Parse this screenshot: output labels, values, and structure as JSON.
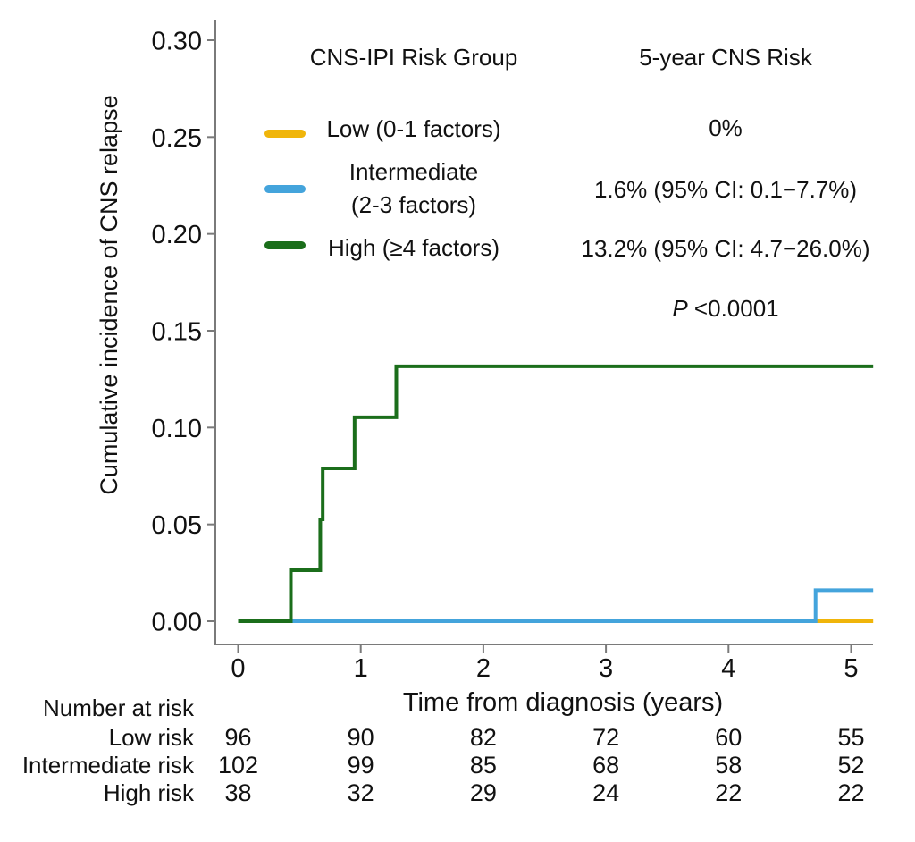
{
  "figure": {
    "y_axis": {
      "label": "Cumulative incidence of CNS relapse",
      "tick_labels": [
        "0.00",
        "0.05",
        "0.10",
        "0.15",
        "0.20",
        "0.25",
        "0.30"
      ]
    },
    "x_axis": {
      "label": "Time from diagnosis (years)",
      "tick_labels": [
        "0",
        "1",
        "2",
        "3",
        "4",
        "5"
      ]
    },
    "legend": {
      "header_group": "CNS-IPI Risk Group",
      "header_risk": "5-year CNS Risk",
      "rows": [
        {
          "label": "Low (0-1 factors)",
          "label2": "",
          "risk": "0%"
        },
        {
          "label": "Intermediate",
          "label2": "(2-3 factors)",
          "risk": "1.6% (95% CI: 0.1−7.7%)"
        },
        {
          "label": "High (≥4 factors)",
          "label2": "",
          "risk": "13.2% (95% CI: 4.7−26.0%)"
        }
      ],
      "p_label": "P",
      "p_value": " <0.0001"
    },
    "at_risk": {
      "title": "Number at risk",
      "rows": [
        {
          "label": "Low risk",
          "values": [
            "96",
            "90",
            "82",
            "72",
            "60",
            "55"
          ]
        },
        {
          "label": "Intermediate risk",
          "values": [
            "102",
            "99",
            "85",
            "68",
            "58",
            "52"
          ]
        },
        {
          "label": "High risk",
          "values": [
            "38",
            "32",
            "29",
            "24",
            "22",
            "22"
          ]
        }
      ]
    }
  },
  "chart_data": {
    "type": "line",
    "subtype": "step-cumulative-incidence",
    "title": "",
    "xlabel": "Time from diagnosis (years)",
    "ylabel": "Cumulative incidence of CNS relapse",
    "xlim": [
      0,
      5.18
    ],
    "ylim": [
      0,
      0.3
    ],
    "x_ticks": [
      0,
      1,
      2,
      3,
      4,
      5
    ],
    "y_ticks": [
      0.0,
      0.05,
      0.1,
      0.15,
      0.2,
      0.25,
      0.3
    ],
    "grid": false,
    "legend_position": "top-inside",
    "p_value": "P <0.0001",
    "axis_color": "#7a7a7a",
    "series": [
      {
        "name": "Low (0-1 factors)",
        "color": "#F0B50A",
        "five_year_risk": "0%",
        "steps": [
          [
            0,
            0
          ],
          [
            5.18,
            0
          ]
        ]
      },
      {
        "name": "Intermediate (2-3 factors)",
        "color": "#44A4DC",
        "five_year_risk": "1.6% (95% CI: 0.1-7.7%)",
        "steps": [
          [
            0,
            0
          ],
          [
            4.71,
            0.016
          ],
          [
            5.18,
            0.016
          ]
        ]
      },
      {
        "name": "High (≥4 factors)",
        "color": "#1B6E1B",
        "five_year_risk": "13.2% (95% CI: 4.7-26.0%)",
        "steps": [
          [
            0,
            0
          ],
          [
            0.43,
            0.0263
          ],
          [
            0.67,
            0.0526
          ],
          [
            0.69,
            0.0789
          ],
          [
            0.95,
            0.1053
          ],
          [
            1.29,
            0.1316
          ],
          [
            5.18,
            0.1316
          ]
        ]
      }
    ]
  }
}
